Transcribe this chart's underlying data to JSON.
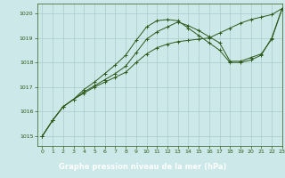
{
  "bg_color": "#cce8e8",
  "grid_color": "#aacccc",
  "line_color": "#2d5a1b",
  "xlabel": "Graphe pression niveau de la mer (hPa)",
  "xlabel_bg": "#3a6b2a",
  "xlabel_fg": "#ffffff",
  "xlim": [
    -0.5,
    23
  ],
  "ylim": [
    1014.6,
    1020.4
  ],
  "yticks": [
    1015,
    1016,
    1017,
    1018,
    1019,
    1020
  ],
  "xticks": [
    0,
    1,
    2,
    3,
    4,
    5,
    6,
    7,
    8,
    9,
    10,
    11,
    12,
    13,
    14,
    15,
    16,
    17,
    18,
    19,
    20,
    21,
    22,
    23
  ],
  "series": [
    [
      1015.0,
      1015.65,
      1016.2,
      1016.5,
      1016.75,
      1017.0,
      1017.2,
      1017.4,
      1017.6,
      1018.0,
      1018.35,
      1018.6,
      1018.75,
      1018.85,
      1018.9,
      1018.95,
      1019.0,
      1019.2,
      1019.4,
      1019.6,
      1019.75,
      1019.85,
      1019.95,
      1020.2
    ],
    [
      1015.0,
      1015.65,
      1016.2,
      1016.5,
      1016.8,
      1017.05,
      1017.3,
      1017.55,
      1017.85,
      1018.4,
      1018.95,
      1019.25,
      1019.45,
      1019.65,
      1019.5,
      1019.3,
      1019.05,
      1018.8,
      1018.05,
      1018.05,
      1018.2,
      1018.35,
      1018.95,
      1020.2
    ],
    [
      1015.0,
      1015.65,
      1016.2,
      1016.5,
      1016.9,
      1017.2,
      1017.55,
      1017.9,
      1018.3,
      1018.9,
      1019.45,
      1019.7,
      1019.75,
      1019.7,
      1019.4,
      1019.1,
      1018.8,
      1018.5,
      1018.0,
      1018.0,
      1018.1,
      1018.3,
      1019.0,
      1020.2
    ]
  ]
}
